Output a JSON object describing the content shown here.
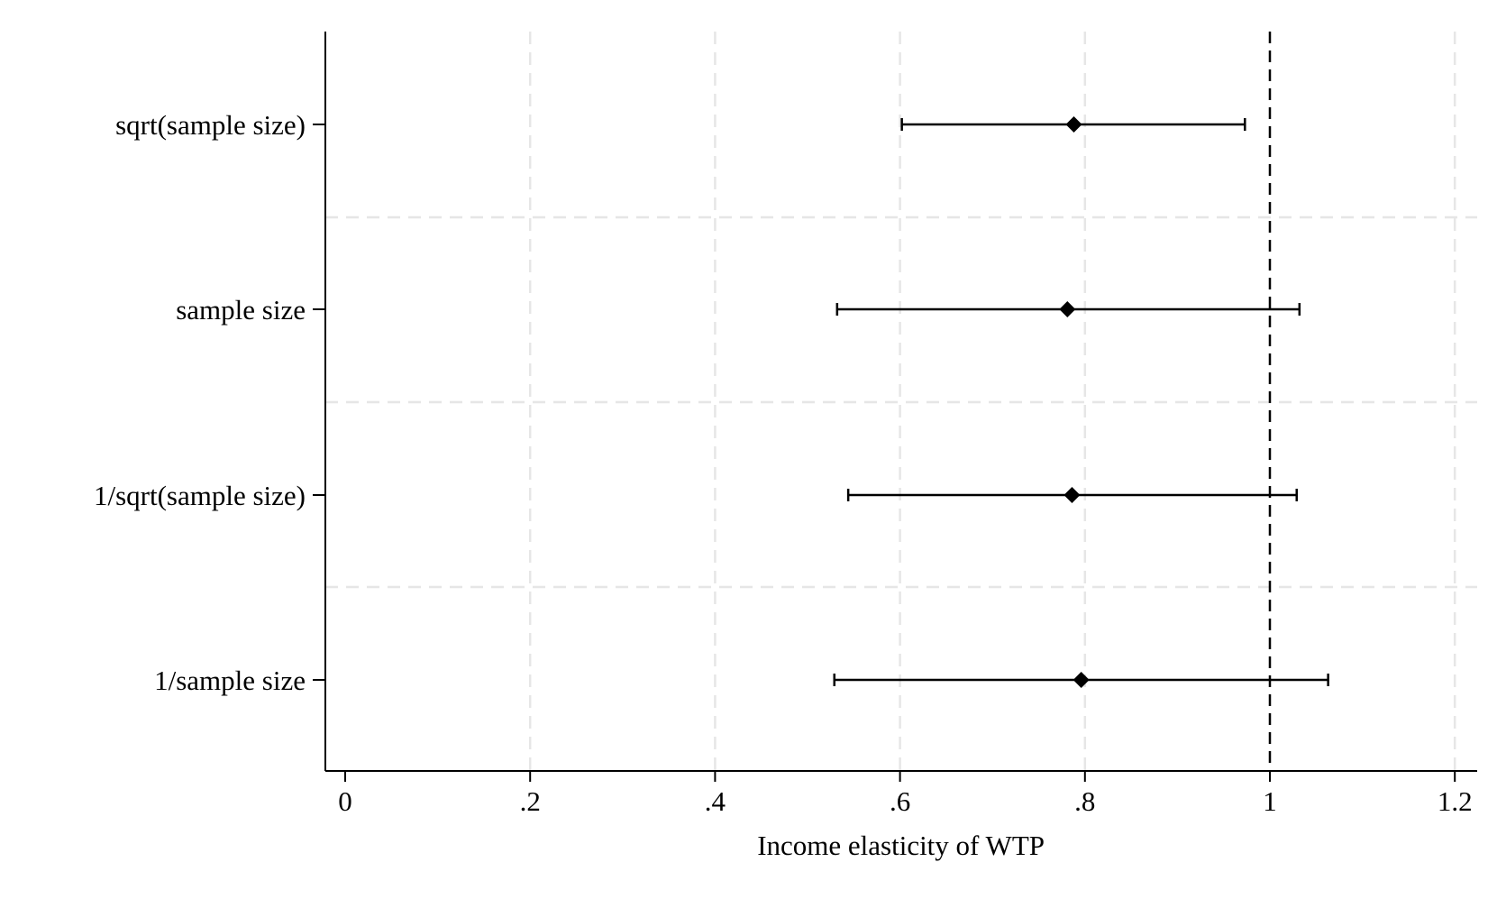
{
  "chart_data": {
    "type": "scatter",
    "title": "",
    "xlabel": "Income elasticity of WTP",
    "ylabel": "",
    "xlim": [
      -0.02,
      1.22
    ],
    "x_ticks": [
      0,
      0.2,
      0.4,
      0.6,
      0.8,
      1,
      1.2
    ],
    "x_tick_labels": [
      "0",
      ".2",
      ".4",
      ".6",
      ".8",
      "1",
      "1.2"
    ],
    "grid": true,
    "legend": "none",
    "reference_line": {
      "x": 1,
      "style": "dashed"
    },
    "categories": [
      "sqrt(sample size)",
      "sample size",
      "1/sqrt(sample size)",
      "1/sample size"
    ],
    "series": [
      {
        "estimates": [
          0.788,
          0.781,
          0.786,
          0.796
        ],
        "ci_low": [
          0.602,
          0.532,
          0.544,
          0.529
        ],
        "ci_high": [
          0.973,
          1.032,
          1.029,
          1.063
        ]
      }
    ],
    "colors": {
      "marker": "#000000",
      "grid": "#e6e6e6",
      "axis": "#000000"
    }
  }
}
